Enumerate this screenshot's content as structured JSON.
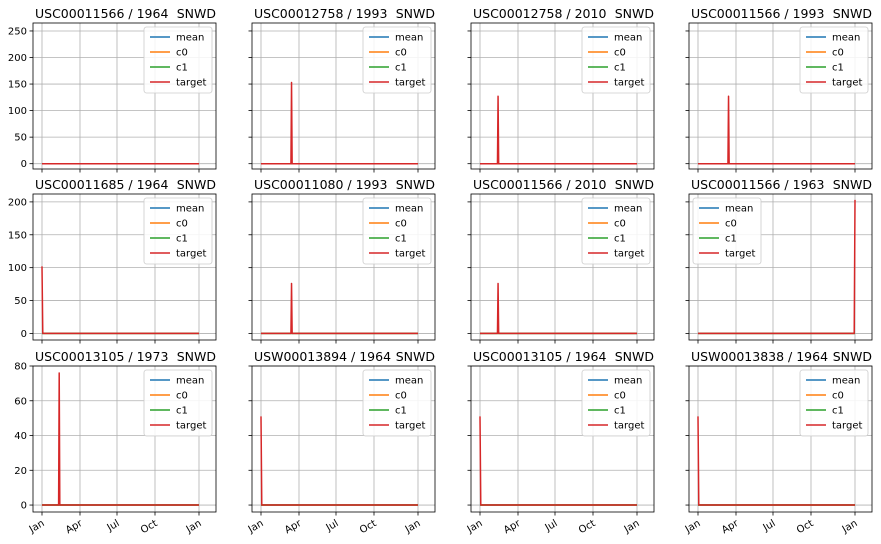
{
  "colors": {
    "mean": "#1f77b4",
    "c0": "#ff7f0e",
    "c1": "#2ca02c",
    "target": "#d62728",
    "grid": "#b0b0b0",
    "axis": "#000000"
  },
  "legend_labels": [
    "mean",
    "c0",
    "c1",
    "target"
  ],
  "x_tick_labels": [
    "Jan",
    "Apr",
    "Jul",
    "Oct",
    "Jan"
  ],
  "chart_data": [
    {
      "type": "line",
      "title": "USC00011566 / 1964",
      "variable": "SNWD",
      "ylim": [
        -10,
        265
      ],
      "yticks": [
        0,
        50,
        100,
        150,
        200,
        250
      ],
      "spike_date": "",
      "spike_value": 0,
      "grid": true,
      "legend": "top-right"
    },
    {
      "type": "line",
      "title": "USC00012758 / 1993",
      "variable": "SNWD",
      "ylim": [
        -10,
        265
      ],
      "yticks": [
        0,
        50,
        100,
        150,
        200,
        250
      ],
      "spike_date": "1993-03-13",
      "spike_value": 153,
      "grid": true,
      "legend": "top-right"
    },
    {
      "type": "line",
      "title": "USC00012758 / 2010",
      "variable": "SNWD",
      "ylim": [
        -10,
        265
      ],
      "yticks": [
        0,
        50,
        100,
        150,
        200,
        250
      ],
      "spike_date": "2010-02-12",
      "spike_value": 127,
      "grid": true,
      "legend": "top-right"
    },
    {
      "type": "line",
      "title": "USC00011566 / 1993",
      "variable": "SNWD",
      "ylim": [
        -10,
        265
      ],
      "yticks": [
        0,
        50,
        100,
        150,
        200,
        250
      ],
      "spike_date": "1993-03-13",
      "spike_value": 127,
      "grid": true,
      "legend": "top-right"
    },
    {
      "type": "line",
      "title": "USC00011685 / 1964",
      "variable": "SNWD",
      "ylim": [
        -10,
        212
      ],
      "yticks": [
        0,
        50,
        100,
        150,
        200
      ],
      "spike_date": "1964-01-01",
      "spike_value": 102,
      "grid": true,
      "legend": "top-right"
    },
    {
      "type": "line",
      "title": "USC00011080 / 1993",
      "variable": "SNWD",
      "ylim": [
        -10,
        212
      ],
      "yticks": [
        0,
        50,
        100,
        150,
        200
      ],
      "spike_date": "1993-03-13",
      "spike_value": 76,
      "grid": true,
      "legend": "top-right"
    },
    {
      "type": "line",
      "title": "USC00011566 / 2010",
      "variable": "SNWD",
      "ylim": [
        -10,
        212
      ],
      "yticks": [
        0,
        50,
        100,
        150,
        200
      ],
      "spike_date": "2010-02-12",
      "spike_value": 76,
      "grid": true,
      "legend": "top-right"
    },
    {
      "type": "line",
      "title": "USC00011566 / 1963",
      "variable": "SNWD",
      "ylim": [
        -10,
        212
      ],
      "yticks": [
        0,
        50,
        100,
        150,
        200
      ],
      "spike_date": "1963-12-31",
      "spike_value": 203,
      "grid": true,
      "legend": "top-left"
    },
    {
      "type": "line",
      "title": "USC00013105 / 1973",
      "variable": "SNWD",
      "ylim": [
        -4,
        80
      ],
      "yticks": [
        0,
        20,
        40,
        60,
        80
      ],
      "spike_date": "1973-02-10",
      "spike_value": 76,
      "grid": true,
      "legend": "top-right"
    },
    {
      "type": "line",
      "title": "USW00013894 / 1964",
      "variable": "SNWD",
      "ylim": [
        -4,
        80
      ],
      "yticks": [
        0,
        20,
        40,
        60,
        80
      ],
      "spike_date": "1964-01-01",
      "spike_value": 51,
      "grid": true,
      "legend": "top-right"
    },
    {
      "type": "line",
      "title": "USC00013105 / 1964",
      "variable": "SNWD",
      "ylim": [
        -4,
        80
      ],
      "yticks": [
        0,
        20,
        40,
        60,
        80
      ],
      "spike_date": "1964-01-01",
      "spike_value": 51,
      "grid": true,
      "legend": "top-right"
    },
    {
      "type": "line",
      "title": "USW00013838 / 1964",
      "variable": "SNWD",
      "ylim": [
        -4,
        80
      ],
      "yticks": [
        0,
        20,
        40,
        60,
        80
      ],
      "spike_date": "1964-01-01",
      "spike_value": 51,
      "grid": true,
      "legend": "top-right"
    }
  ]
}
